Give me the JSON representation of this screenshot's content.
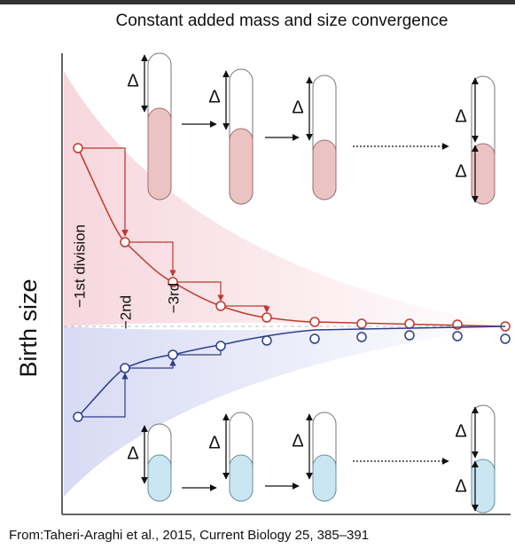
{
  "title": "Constant added mass and size convergence",
  "y_axis_label": "Birth size",
  "division_labels": [
    "−1st division",
    "−2nd",
    "−3rd"
  ],
  "delta_labels": [
    "Δ",
    "Δ",
    "Δ",
    "Δ",
    "Δ",
    "Δ",
    "Δ",
    "Δ",
    "Δ",
    "Δ"
  ],
  "caption": "From:Taheri-Araghi et al., 2015, Current Biology 25, 385–391"
}
